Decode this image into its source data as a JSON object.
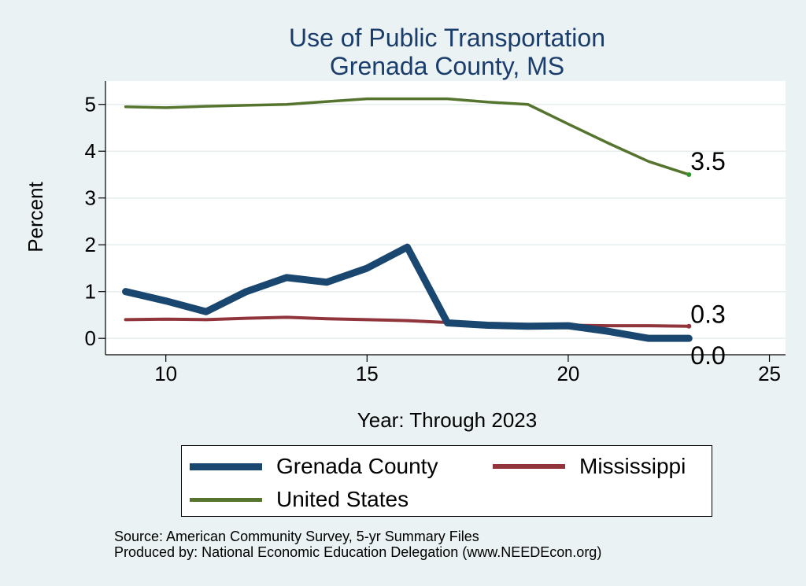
{
  "chart_data": {
    "type": "line",
    "title": [
      "Use of Public Transportation",
      "Grenada County, MS"
    ],
    "xlabel": "Year: Through 2023",
    "ylabel": "Percent",
    "xlim": [
      8.5,
      25.4
    ],
    "ylim": [
      -0.35,
      5.5
    ],
    "xticks": [
      10,
      15,
      20,
      25
    ],
    "yticks": [
      0,
      1,
      2,
      3,
      4,
      5
    ],
    "grid": true,
    "series": [
      {
        "name": "Grenada County",
        "color": "#1a476f",
        "x": [
          9,
          10,
          11,
          12,
          13,
          14,
          15,
          16,
          17,
          18,
          19,
          20,
          21,
          22,
          23
        ],
        "values": [
          1.0,
          0.8,
          0.57,
          1.0,
          1.3,
          1.2,
          1.5,
          1.95,
          0.33,
          0.28,
          0.26,
          0.27,
          0.15,
          0.0,
          0.0
        ],
        "end_label": "0.0"
      },
      {
        "name": "Mississippi",
        "color": "#90353b",
        "x": [
          9,
          10,
          11,
          12,
          13,
          14,
          15,
          16,
          17,
          18,
          19,
          20,
          21,
          22,
          23
        ],
        "values": [
          0.4,
          0.41,
          0.4,
          0.43,
          0.45,
          0.42,
          0.4,
          0.38,
          0.34,
          0.3,
          0.29,
          0.28,
          0.27,
          0.27,
          0.26
        ],
        "end_label": "0.3"
      },
      {
        "name": "United States",
        "color": "#55752f",
        "x": [
          9,
          10,
          11,
          12,
          13,
          14,
          15,
          16,
          17,
          18,
          19,
          20,
          21,
          22,
          23
        ],
        "values": [
          4.95,
          4.93,
          4.96,
          4.98,
          5.0,
          5.06,
          5.12,
          5.12,
          5.12,
          5.05,
          5.0,
          4.58,
          4.17,
          3.78,
          3.5
        ],
        "end_label": "3.5"
      }
    ],
    "legend": {
      "position": "bottom",
      "items": [
        "Grenada County",
        "Mississippi",
        "United States"
      ]
    }
  },
  "source": {
    "line1": "Source: American Community Survey, 5-yr Summary Files",
    "line2": "Produced by: National Economic Education Delegation (www.NEEDEcon.org)"
  }
}
